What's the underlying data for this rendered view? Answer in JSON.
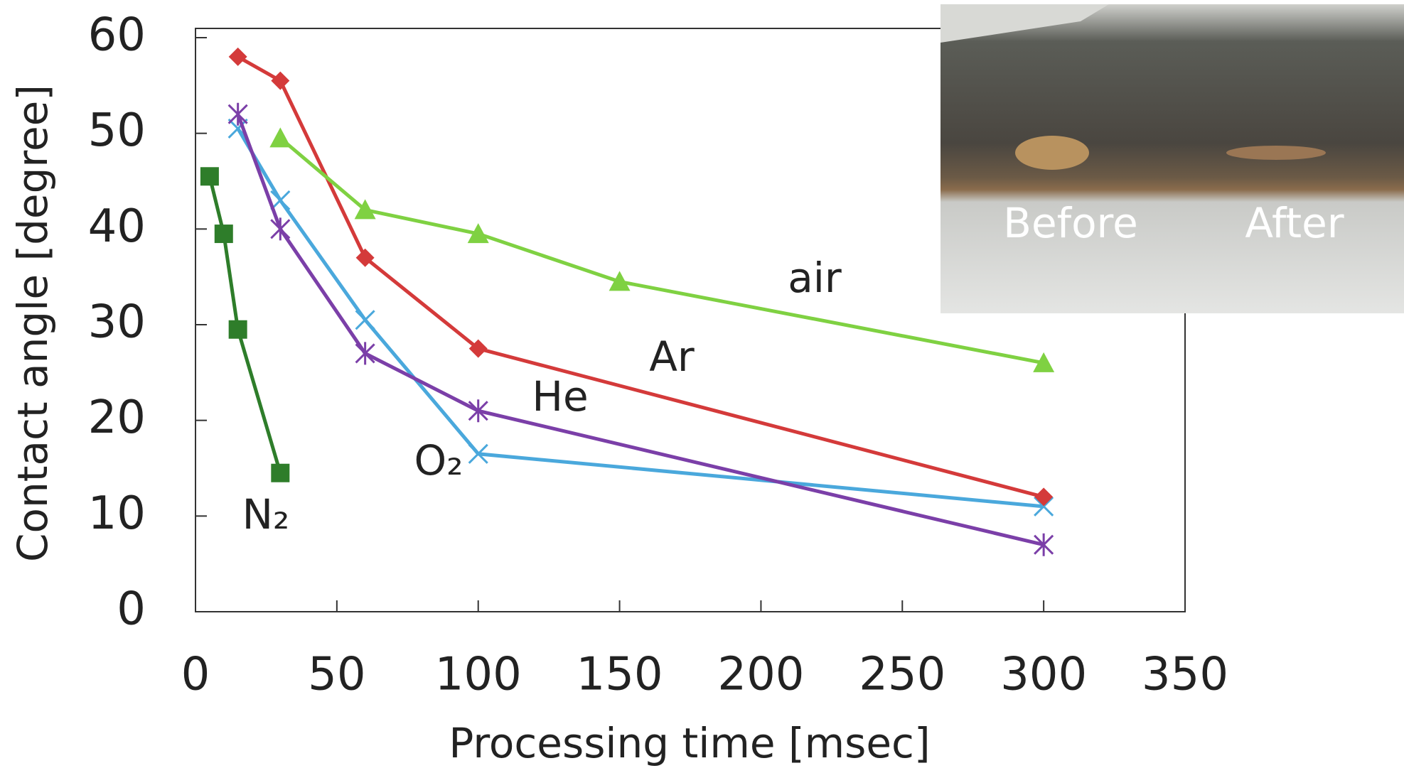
{
  "chart_data": {
    "type": "line",
    "x_label": "Processing time [msec]",
    "y_label": "Contact angle [degree]",
    "xlim": [
      0,
      350
    ],
    "xticks": [
      0,
      50,
      100,
      150,
      200,
      250,
      300,
      350
    ],
    "ylim": [
      0,
      60
    ],
    "yticks": [
      0,
      10,
      20,
      30,
      40,
      50,
      60
    ],
    "series": [
      {
        "name": "N₂",
        "color": "#2e7d2a",
        "marker": "square",
        "x": [
          5,
          10,
          15,
          30
        ],
        "values": [
          45.5,
          39.5,
          29.5,
          14.5
        ]
      },
      {
        "name": "O₂",
        "color": "#4aa8dc",
        "marker": "x",
        "x": [
          15,
          30,
          60,
          100,
          300
        ],
        "values": [
          50.5,
          43,
          30.5,
          16.5,
          11
        ]
      },
      {
        "name": "He",
        "color": "#7b3fa8",
        "marker": "asterisk",
        "x": [
          15,
          30,
          60,
          100,
          300
        ],
        "values": [
          52,
          40,
          27,
          21,
          7
        ]
      },
      {
        "name": "Ar",
        "color": "#d43a3a",
        "marker": "diamond",
        "x": [
          15,
          30,
          60,
          100,
          300
        ],
        "values": [
          58,
          55.5,
          37,
          27.5,
          12
        ]
      },
      {
        "name": "air",
        "color": "#7fd142",
        "marker": "triangle",
        "x": [
          30,
          60,
          100,
          150,
          300
        ],
        "values": [
          49.5,
          42,
          39.5,
          34.5,
          26
        ]
      }
    ]
  },
  "inset": {
    "labels": [
      "Before",
      "After"
    ]
  }
}
